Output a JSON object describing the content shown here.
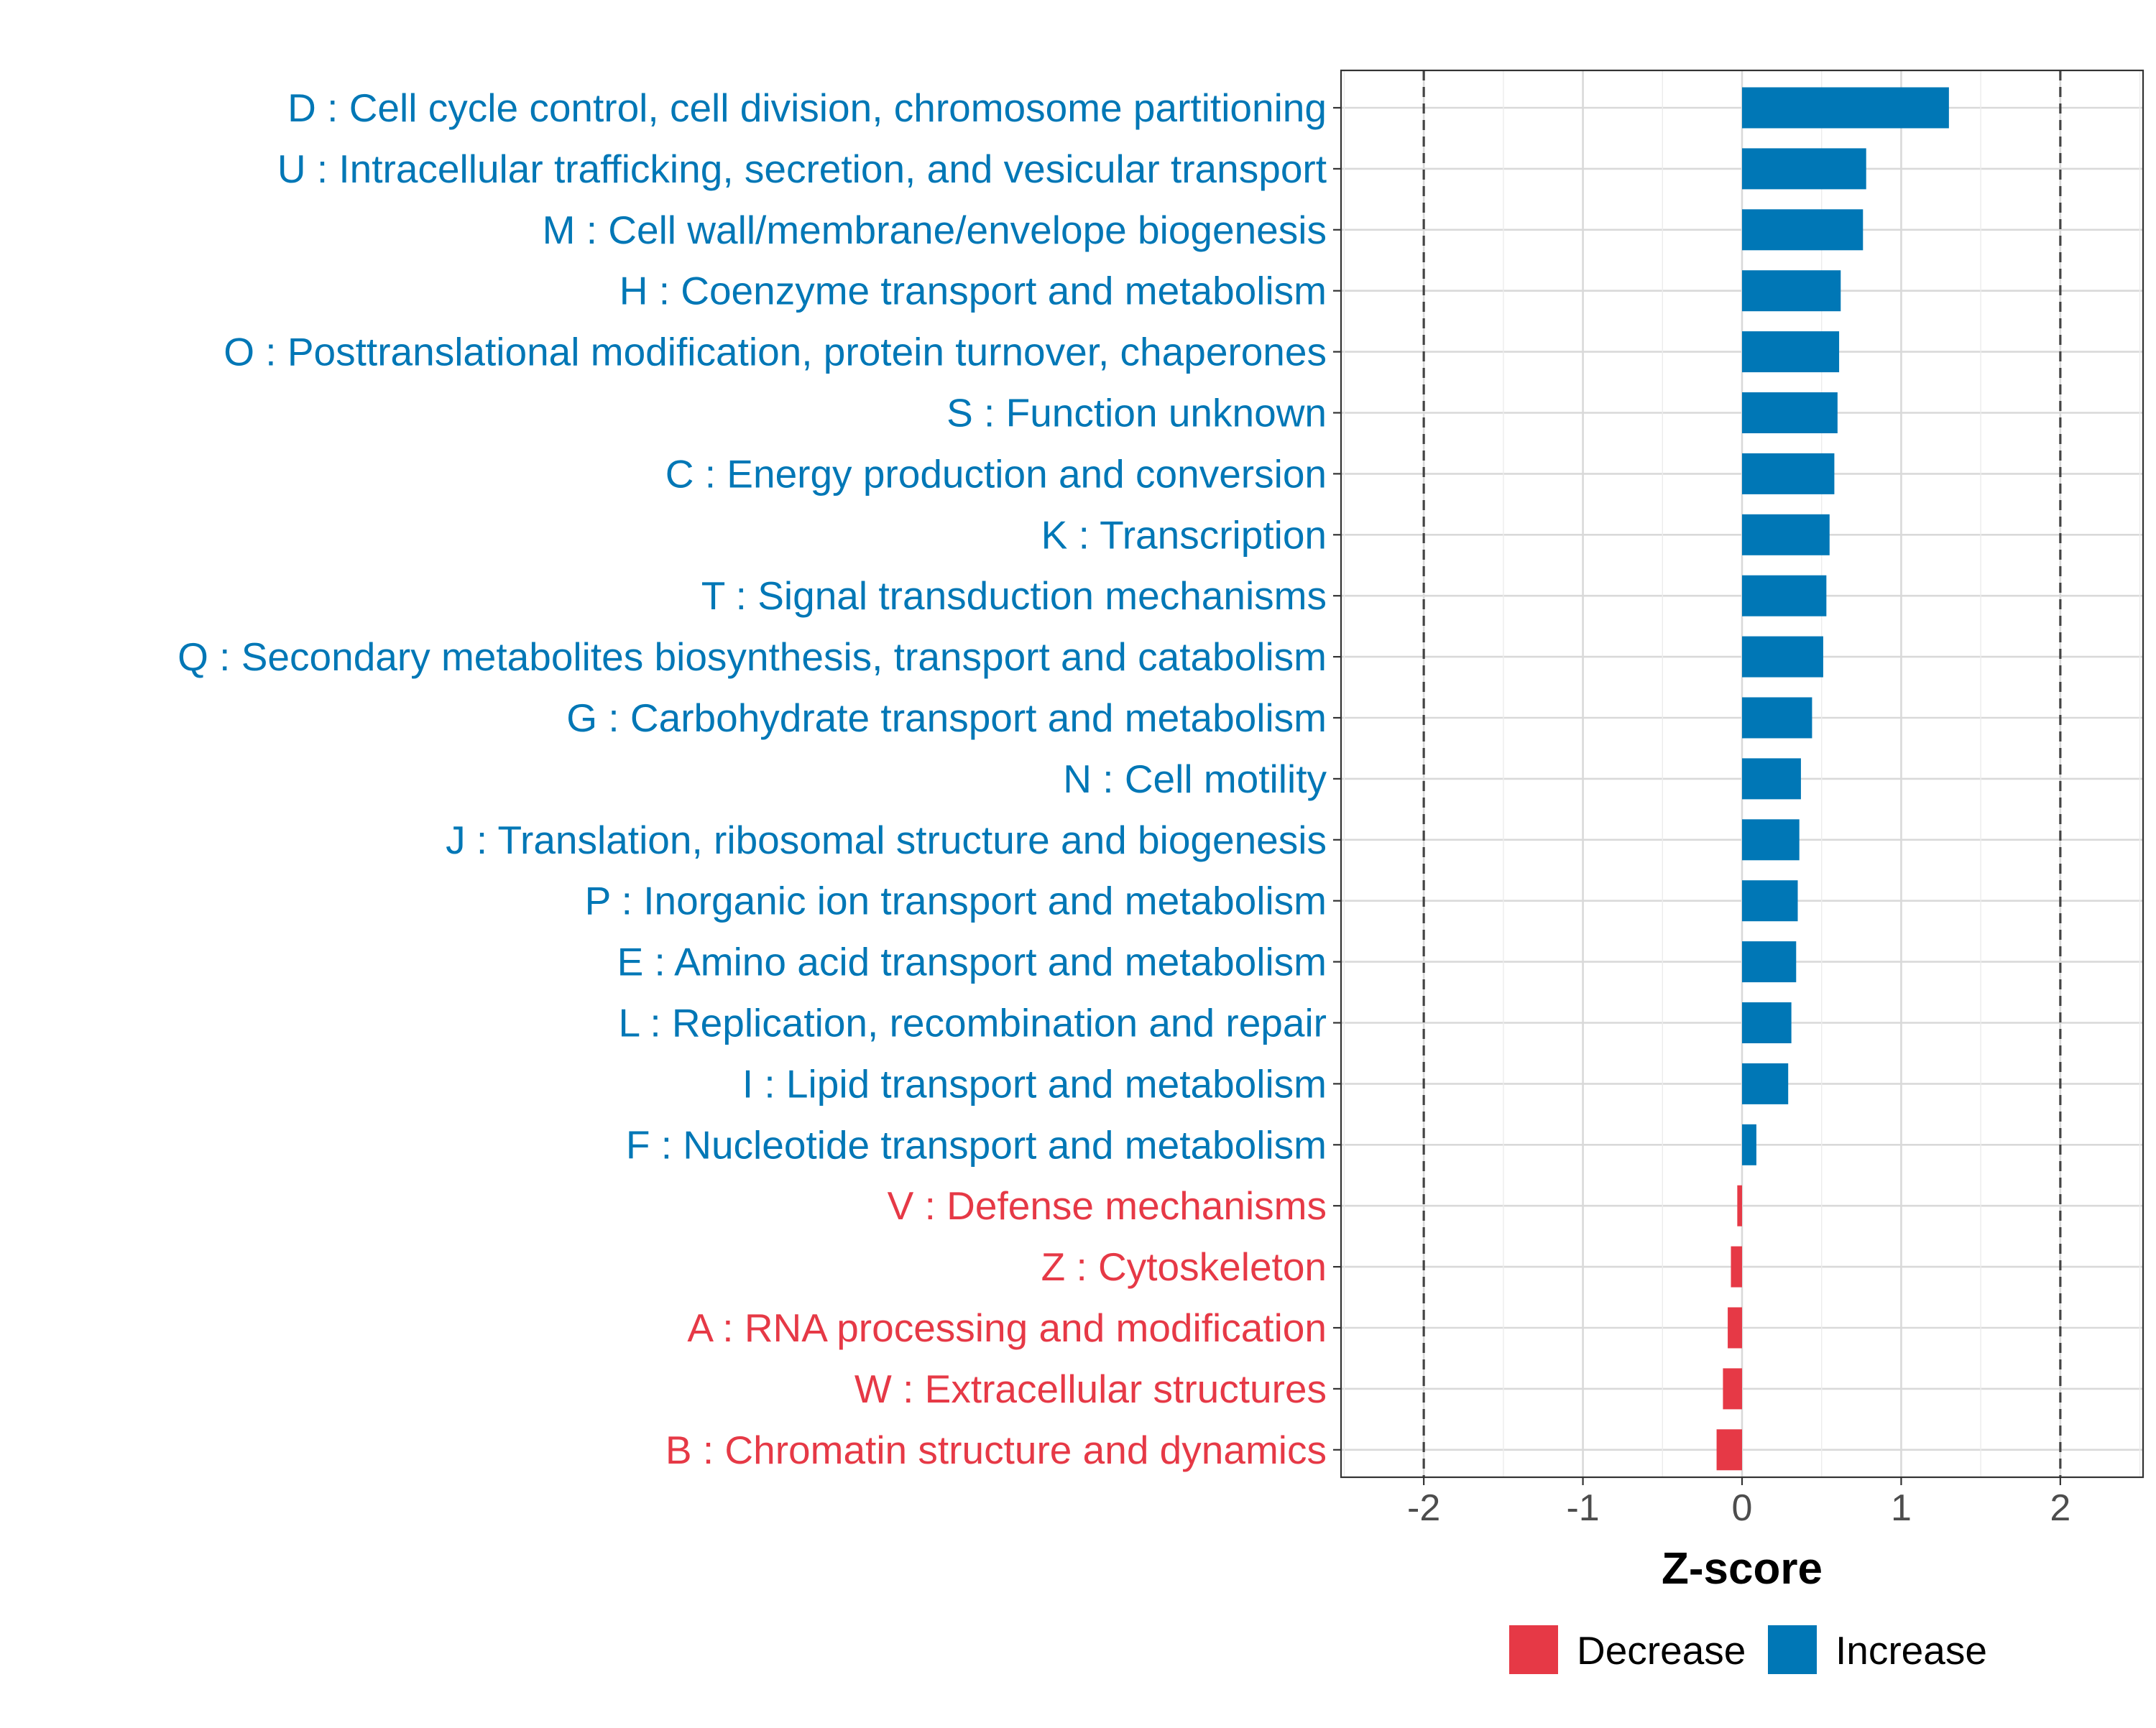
{
  "chart_data": {
    "type": "bar",
    "orientation": "horizontal",
    "title": "",
    "xlabel": "Z-score",
    "ylabel": "",
    "xlim": [
      -2.52,
      2.52
    ],
    "xticks": [
      -2,
      -1,
      0,
      1,
      2
    ],
    "xtick_labels": [
      "-2",
      "-1",
      "0",
      "1",
      "2"
    ],
    "reference_lines": [
      -2,
      2
    ],
    "grid": true,
    "legend_position": "bottom",
    "legend": [
      {
        "label": "Decrease",
        "color": "#e63946"
      },
      {
        "label": "Increase",
        "color": "#0077b6"
      }
    ],
    "categories": [
      "D : Cell cycle control, cell division, chromosome partitioning",
      "U : Intracellular trafficking, secretion, and vesicular transport",
      "M : Cell wall/membrane/envelope biogenesis",
      "H : Coenzyme transport and metabolism",
      "O : Posttranslational modification, protein turnover, chaperones",
      "S : Function unknown",
      "C : Energy production and conversion",
      "K : Transcription",
      "T : Signal transduction mechanisms",
      "Q : Secondary metabolites biosynthesis, transport and catabolism",
      "G : Carbohydrate transport and metabolism",
      "N : Cell motility",
      "J : Translation, ribosomal structure and biogenesis",
      "P : Inorganic ion transport and metabolism",
      "E : Amino acid transport and metabolism",
      "L : Replication, recombination and repair",
      "I : Lipid transport and metabolism",
      "F : Nucleotide transport and metabolism",
      "V : Defense mechanisms",
      "Z : Cytoskeleton",
      "A : RNA processing and modification",
      "W : Extracellular structures",
      "B : Chromatin structure and dynamics"
    ],
    "values": [
      1.3,
      0.78,
      0.76,
      0.62,
      0.61,
      0.6,
      0.58,
      0.55,
      0.53,
      0.51,
      0.44,
      0.37,
      0.36,
      0.35,
      0.34,
      0.31,
      0.29,
      0.09,
      -0.03,
      -0.07,
      -0.09,
      -0.12,
      -0.16
    ],
    "groups": [
      "Increase",
      "Increase",
      "Increase",
      "Increase",
      "Increase",
      "Increase",
      "Increase",
      "Increase",
      "Increase",
      "Increase",
      "Increase",
      "Increase",
      "Increase",
      "Increase",
      "Increase",
      "Increase",
      "Increase",
      "Increase",
      "Decrease",
      "Decrease",
      "Decrease",
      "Decrease",
      "Decrease"
    ]
  }
}
